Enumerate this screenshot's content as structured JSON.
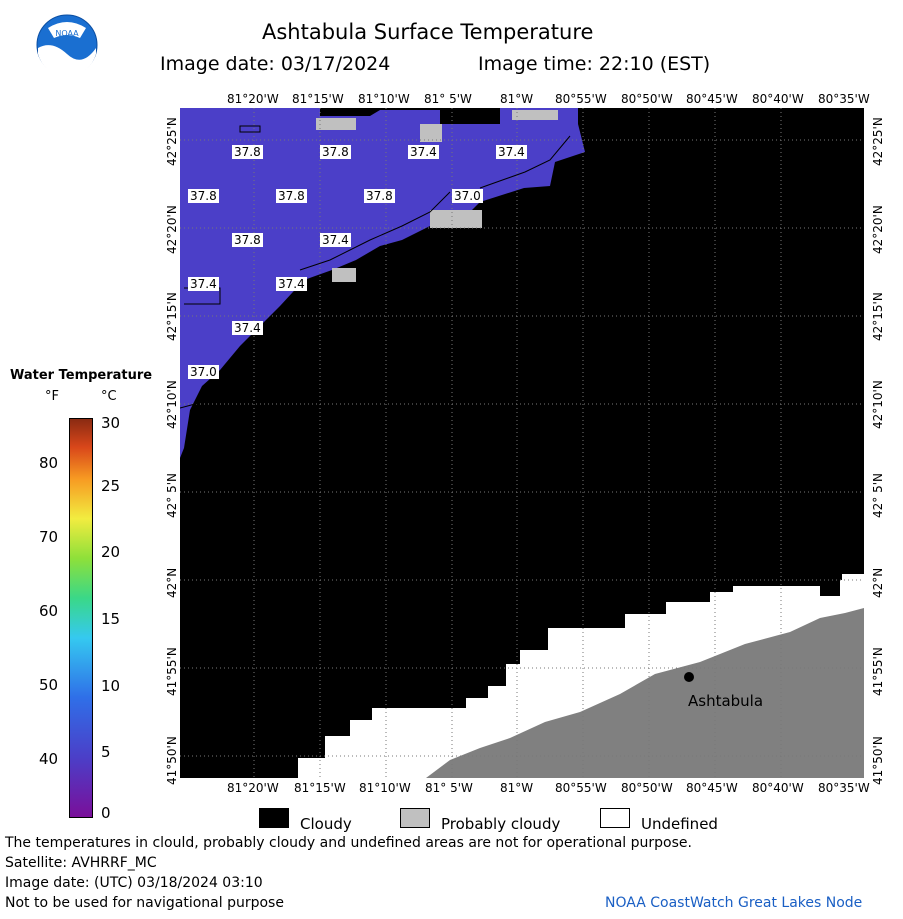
{
  "header": {
    "title": "Ashtabula Surface Temperature",
    "image_date_label": "Image date: 03/17/2024",
    "image_time_label": "Image time: 22:10 (EST)"
  },
  "logo": {
    "text": "NOAA"
  },
  "map": {
    "lon_ticks_top": [
      "81°20'W",
      "81°15'W",
      "81°10'W",
      "81° 5'W",
      "81°W",
      "80°55'W",
      "80°50'W",
      "80°45'W",
      "80°40'W",
      "80°35'W"
    ],
    "lon_ticks_bottom": [
      "81°20'W",
      "81°15'W",
      "81°10'W",
      "81° 5'W",
      "81°W",
      "80°55'W",
      "80°50'W",
      "80°45'W",
      "80°40'W",
      "80°35'W"
    ],
    "lat_ticks": [
      "42°25'N",
      "42°20'N",
      "42°15'N",
      "42°10'N",
      "42° 5'N",
      "42°N",
      "41°55'N",
      "41°50'N"
    ],
    "temperature_labels": [
      "37.8",
      "37.8",
      "37.4",
      "37.4",
      "37.8",
      "37.8",
      "37.8",
      "37.0",
      "37.8",
      "37.4",
      "37.4",
      "37.4",
      "37.4",
      "37.0"
    ],
    "city": {
      "name": "Ashtabula"
    },
    "colors": {
      "water": "#4b3fc8",
      "cloud": "#000000",
      "probably_cloudy": "#c0c0c0",
      "undefined": "#ffffff",
      "land": "#808080"
    }
  },
  "legend": {
    "title": "Water Temperature",
    "unit_f": "°F",
    "unit_c": "°C",
    "f_values": [
      "80",
      "70",
      "60",
      "50",
      "40"
    ],
    "c_values": [
      "30",
      "25",
      "20",
      "15",
      "10",
      "5",
      "0"
    ]
  },
  "key": {
    "cloudy": "Cloudy",
    "probably_cloudy": "Probably cloudy",
    "undefined": "Undefined"
  },
  "footer": {
    "line1": "The temperatures in clould, probably cloudy and undefined areas are not for operational purpose.",
    "line2": "Satellite: AVHRRF_MC",
    "line3": "Image date: (UTC) 03/18/2024  03:10",
    "line4": "Not to be used for navigational purpose",
    "credit": "NOAA CoastWatch Great Lakes Node"
  }
}
